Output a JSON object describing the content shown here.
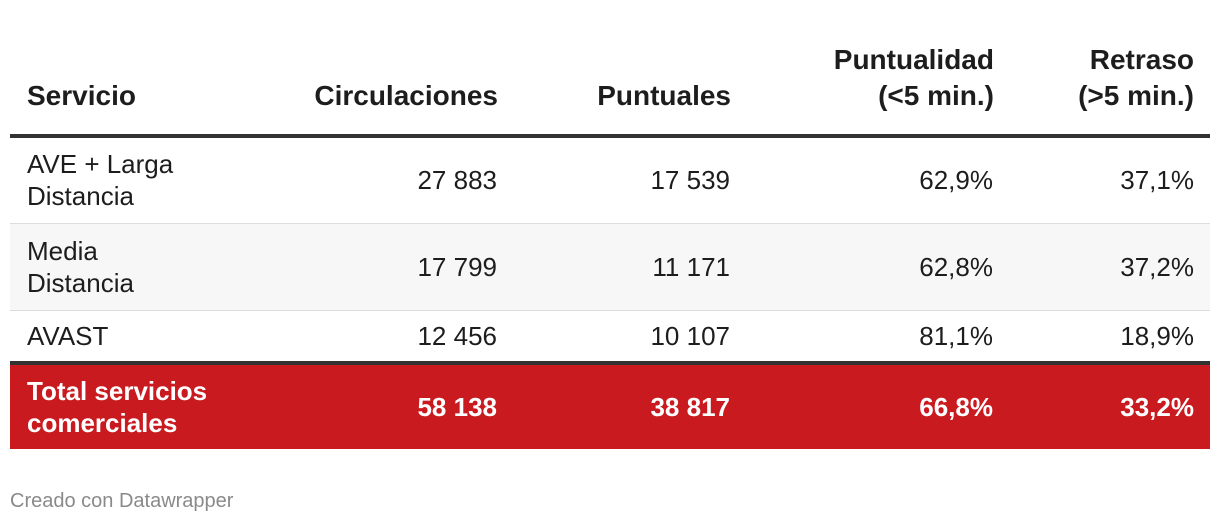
{
  "chart_data": {
    "type": "table",
    "columns": [
      "Servicio",
      "Circulaciones",
      "Puntuales",
      "Puntualidad (<5 min.)",
      "Retraso (>5 min.)"
    ],
    "header": {
      "servicio": "Servicio",
      "circulaciones": "Circulaciones",
      "puntuales": "Puntuales",
      "puntualidad_l1": "Puntualidad",
      "puntualidad_l2": "(<5 min.)",
      "retraso_l1": "Retraso",
      "retraso_l2": "(>5 min.)"
    },
    "rows": [
      {
        "servicio_l1": "AVE + Larga",
        "servicio_l2": "Distancia",
        "circulaciones": "27 883",
        "puntuales": "17 539",
        "puntualidad": "62,9%",
        "retraso": "37,1%"
      },
      {
        "servicio_l1": "Media",
        "servicio_l2": "Distancia",
        "circulaciones": "17 799",
        "puntuales": "11 171",
        "puntualidad": "62,8%",
        "retraso": "37,2%"
      },
      {
        "servicio_l1": "AVAST",
        "servicio_l2": "",
        "circulaciones": "12 456",
        "puntuales": "10 107",
        "puntualidad": "81,1%",
        "retraso": "18,9%"
      }
    ],
    "total": {
      "servicio_l1": "Total servicios",
      "servicio_l2": "comerciales",
      "circulaciones": "58 138",
      "puntuales": "38 817",
      "puntualidad": "66,8%",
      "retraso": "33,2%"
    }
  },
  "colors": {
    "total_row_bg": "#c91a1f",
    "alt_row_bg": "#f7f7f7"
  },
  "footer": {
    "credit": "Creado con Datawrapper"
  }
}
